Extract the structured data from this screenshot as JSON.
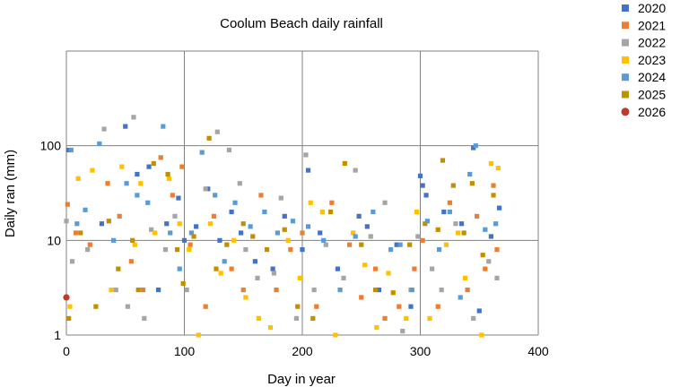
{
  "chart_data": {
    "type": "scatter",
    "title": "Coolum Beach daily rainfall",
    "xlabel": "Day in year",
    "ylabel": "Daily ran (mm)",
    "xlim": [
      0,
      400
    ],
    "ylim": [
      1,
      1000
    ],
    "yscale": "log",
    "grid": true,
    "legend_position": "right",
    "x_ticks": [
      "0",
      "100",
      "200",
      "300",
      "400"
    ],
    "y_ticks": [
      "1",
      "10",
      "100"
    ],
    "x_tick_values": [
      0,
      100,
      200,
      300,
      400
    ],
    "y_tick_values": [
      1,
      10,
      100
    ],
    "series": [
      {
        "name": "2020",
        "color": "#4472C4",
        "marker": "square",
        "points": [
          [
            2,
            90
          ],
          [
            30,
            15
          ],
          [
            50,
            160
          ],
          [
            60,
            50
          ],
          [
            70,
            60
          ],
          [
            78,
            3
          ],
          [
            85,
            15
          ],
          [
            95,
            28
          ],
          [
            100,
            10
          ],
          [
            110,
            14
          ],
          [
            120,
            35
          ],
          [
            130,
            10
          ],
          [
            140,
            20
          ],
          [
            148,
            12
          ],
          [
            160,
            6
          ],
          [
            175,
            5
          ],
          [
            185,
            18
          ],
          [
            200,
            8
          ],
          [
            205,
            55
          ],
          [
            215,
            12
          ],
          [
            230,
            5
          ],
          [
            248,
            18
          ],
          [
            255,
            14
          ],
          [
            265,
            3
          ],
          [
            280,
            9
          ],
          [
            292,
            2
          ],
          [
            300,
            48
          ],
          [
            302,
            38
          ],
          [
            305,
            30
          ],
          [
            320,
            20
          ],
          [
            335,
            15
          ],
          [
            345,
            95
          ],
          [
            350,
            1.8
          ],
          [
            360,
            11
          ],
          [
            367,
            22
          ]
        ]
      },
      {
        "name": "2021",
        "color": "#ED7D31",
        "marker": "square",
        "points": [
          [
            1,
            24
          ],
          [
            8,
            12
          ],
          [
            20,
            9
          ],
          [
            35,
            40
          ],
          [
            45,
            18
          ],
          [
            55,
            6
          ],
          [
            65,
            3
          ],
          [
            80,
            75
          ],
          [
            90,
            30
          ],
          [
            98,
            60
          ],
          [
            105,
            9
          ],
          [
            118,
            2
          ],
          [
            125,
            18
          ],
          [
            140,
            5
          ],
          [
            150,
            3
          ],
          [
            165,
            30
          ],
          [
            178,
            3
          ],
          [
            190,
            8
          ],
          [
            200,
            12
          ],
          [
            212,
            2
          ],
          [
            225,
            25
          ],
          [
            240,
            9
          ],
          [
            250,
            2.5
          ],
          [
            262,
            5
          ],
          [
            270,
            1.5
          ],
          [
            282,
            2
          ],
          [
            295,
            5
          ],
          [
            302,
            10
          ],
          [
            315,
            2
          ],
          [
            325,
            25
          ],
          [
            340,
            3
          ],
          [
            348,
            18
          ],
          [
            355,
            5
          ],
          [
            362,
            38
          ],
          [
            365,
            8
          ]
        ]
      },
      {
        "name": "2022",
        "color": "#A5A5A5",
        "marker": "square",
        "points": [
          [
            0,
            16
          ],
          [
            5,
            6
          ],
          [
            18,
            8
          ],
          [
            32,
            150
          ],
          [
            42,
            3
          ],
          [
            52,
            2
          ],
          [
            57,
            200
          ],
          [
            66,
            1.5
          ],
          [
            72,
            13
          ],
          [
            84,
            8
          ],
          [
            92,
            18
          ],
          [
            102,
            3
          ],
          [
            118,
            35
          ],
          [
            128,
            140
          ],
          [
            138,
            90
          ],
          [
            147,
            40
          ],
          [
            152,
            8
          ],
          [
            162,
            4
          ],
          [
            176,
            4.5
          ],
          [
            182,
            28
          ],
          [
            195,
            1.5
          ],
          [
            203,
            80
          ],
          [
            210,
            3
          ],
          [
            220,
            9
          ],
          [
            235,
            4
          ],
          [
            245,
            55
          ],
          [
            258,
            11
          ],
          [
            270,
            25
          ],
          [
            285,
            1.1
          ],
          [
            292,
            3
          ],
          [
            298,
            11
          ],
          [
            310,
            5
          ],
          [
            318,
            3
          ],
          [
            330,
            15
          ],
          [
            345,
            1.5
          ],
          [
            358,
            6
          ],
          [
            365,
            4
          ]
        ]
      },
      {
        "name": "2023",
        "color": "#FFC000",
        "marker": "square",
        "points": [
          [
            3,
            2
          ],
          [
            10,
            45
          ],
          [
            22,
            55
          ],
          [
            38,
            3
          ],
          [
            47,
            60
          ],
          [
            58,
            9
          ],
          [
            63,
            40
          ],
          [
            75,
            12
          ],
          [
            87,
            45
          ],
          [
            96,
            15
          ],
          [
            104,
            8
          ],
          [
            112,
            1
          ],
          [
            122,
            15
          ],
          [
            131,
            4.5
          ],
          [
            142,
            10
          ],
          [
            152,
            2.5
          ],
          [
            163,
            1.5
          ],
          [
            173,
            1.2
          ],
          [
            188,
            10
          ],
          [
            198,
            4
          ],
          [
            207,
            25
          ],
          [
            217,
            20
          ],
          [
            228,
            1
          ],
          [
            243,
            12
          ],
          [
            253,
            5.5
          ],
          [
            263,
            1.2
          ],
          [
            273,
            4.5
          ],
          [
            288,
            1.5
          ],
          [
            297,
            20
          ],
          [
            308,
            1.5
          ],
          [
            322,
            9
          ],
          [
            332,
            12
          ],
          [
            338,
            4
          ],
          [
            352,
            1
          ],
          [
            360,
            65
          ],
          [
            366,
            58
          ]
        ]
      },
      {
        "name": "2024",
        "color": "#5B9BD5",
        "marker": "square",
        "points": [
          [
            4,
            90
          ],
          [
            9,
            15
          ],
          [
            16,
            21
          ],
          [
            28,
            105
          ],
          [
            40,
            10
          ],
          [
            51,
            40
          ],
          [
            60,
            30
          ],
          [
            69,
            25
          ],
          [
            82,
            160
          ],
          [
            88,
            12
          ],
          [
            96,
            5
          ],
          [
            106,
            12
          ],
          [
            115,
            85
          ],
          [
            126,
            30
          ],
          [
            134,
            6
          ],
          [
            143,
            25
          ],
          [
            156,
            14
          ],
          [
            168,
            20
          ],
          [
            179,
            12
          ],
          [
            192,
            16
          ],
          [
            205,
            14
          ],
          [
            218,
            10
          ],
          [
            232,
            3
          ],
          [
            245,
            11
          ],
          [
            260,
            20
          ],
          [
            275,
            8
          ],
          [
            283,
            9
          ],
          [
            293,
            3
          ],
          [
            306,
            16
          ],
          [
            316,
            8
          ],
          [
            325,
            20
          ],
          [
            334,
            2.5
          ],
          [
            342,
            50
          ],
          [
            347,
            100
          ],
          [
            355,
            13
          ],
          [
            364,
            15
          ]
        ]
      },
      {
        "name": "2025",
        "color": "#C09000",
        "marker": "square",
        "points": [
          [
            2,
            1.5
          ],
          [
            12,
            12
          ],
          [
            25,
            2
          ],
          [
            36,
            16
          ],
          [
            44,
            5
          ],
          [
            56,
            10
          ],
          [
            61,
            3
          ],
          [
            74,
            65
          ],
          [
            86,
            50
          ],
          [
            94,
            8
          ],
          [
            99,
            3.5
          ],
          [
            108,
            11
          ],
          [
            121,
            120
          ],
          [
            127,
            5
          ],
          [
            136,
            9
          ],
          [
            150,
            15
          ],
          [
            158,
            11
          ],
          [
            170,
            8
          ],
          [
            185,
            13
          ],
          [
            196,
            2
          ],
          [
            209,
            1.5
          ],
          [
            224,
            20
          ],
          [
            236,
            65
          ],
          [
            250,
            9
          ],
          [
            262,
            3
          ],
          [
            277,
            2.8
          ],
          [
            291,
            9
          ],
          [
            304,
            15
          ],
          [
            315,
            13
          ],
          [
            319,
            70
          ],
          [
            328,
            38
          ],
          [
            337,
            12
          ],
          [
            344,
            40
          ],
          [
            353,
            7
          ],
          [
            362,
            30
          ]
        ]
      },
      {
        "name": "2026",
        "color": "#C0392B",
        "marker": "circle",
        "points": [
          [
            0,
            2.5
          ]
        ]
      }
    ]
  }
}
